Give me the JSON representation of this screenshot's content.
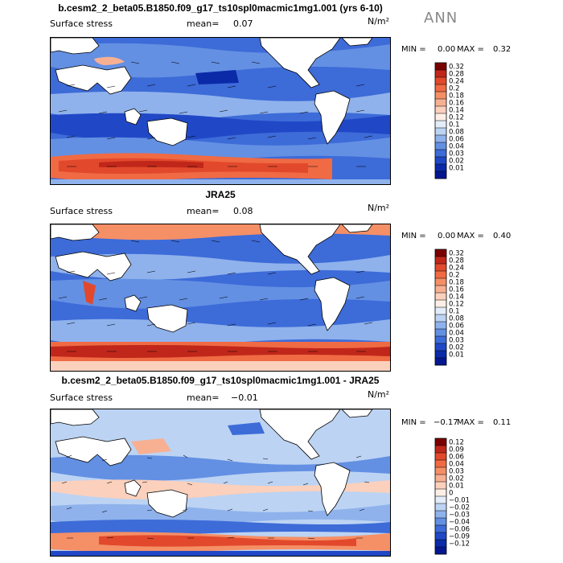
{
  "season": "ANN",
  "panels": [
    {
      "title": "b.cesm2_2_beta05.B1850.f09_g17_ts10spl0macmic1mg1.001 (yrs 6-10)",
      "field": "Surface stress",
      "mean_label": "mean=",
      "mean": "0.07",
      "units": "N/m²",
      "min_label": "MIN =",
      "min": "0.00",
      "max_label": "MAX =",
      "max": "0.32",
      "levels": [
        "0.32",
        "0.28",
        "0.24",
        "0.2",
        "0.18",
        "0.16",
        "0.14",
        "0.12",
        "0.1",
        "0.08",
        "0.06",
        "0.04",
        "0.03",
        "0.02",
        "0.01"
      ],
      "colors": [
        "#7a0000",
        "#c0271a",
        "#e2492c",
        "#f06a44",
        "#f58f66",
        "#f8b093",
        "#fbd0bc",
        "#fdefe6",
        "#e3ecf9",
        "#bcd3f3",
        "#8fb2ec",
        "#6390e3",
        "#3d6bd8",
        "#2048c6",
        "#0b2aa8",
        "#051790"
      ]
    },
    {
      "title": "JRA25",
      "field": "Surface stress",
      "mean_label": "mean=",
      "mean": "0.08",
      "units": "N/m²",
      "min_label": "MIN =",
      "min": "0.00",
      "max_label": "MAX =",
      "max": "0.40",
      "levels": [
        "0.32",
        "0.28",
        "0.24",
        "0.2",
        "0.18",
        "0.16",
        "0.14",
        "0.12",
        "0.1",
        "0.08",
        "0.06",
        "0.04",
        "0.03",
        "0.02",
        "0.01"
      ],
      "colors": [
        "#7a0000",
        "#c0271a",
        "#e2492c",
        "#f06a44",
        "#f58f66",
        "#f8b093",
        "#fbd0bc",
        "#fdefe6",
        "#e3ecf9",
        "#bcd3f3",
        "#8fb2ec",
        "#6390e3",
        "#3d6bd8",
        "#2048c6",
        "#0b2aa8",
        "#051790"
      ]
    },
    {
      "title": "b.cesm2_2_beta05.B1850.f09_g17_ts10spl0macmic1mg1.001 - JRA25",
      "field": "Surface stress",
      "mean_label": "mean=",
      "mean": "−0.01",
      "units": "N/m²",
      "min_label": "MIN =",
      "min": "−0.17",
      "max_label": "MAX =",
      "max": "0.11",
      "levels": [
        "0.12",
        "0.09",
        "0.06",
        "0.04",
        "0.03",
        "0.02",
        "0.01",
        "0",
        "−0.01",
        "−0.02",
        "−0.03",
        "−0.04",
        "−0.06",
        "−0.09",
        "−0.12"
      ],
      "colors": [
        "#7a0000",
        "#c0271a",
        "#e2492c",
        "#f06a44",
        "#f58f66",
        "#f8b093",
        "#fbd0bc",
        "#fdefe6",
        "#e3ecf9",
        "#bcd3f3",
        "#8fb2ec",
        "#6390e3",
        "#3d6bd8",
        "#2048c6",
        "#0b2aa8",
        "#051790"
      ]
    }
  ]
}
